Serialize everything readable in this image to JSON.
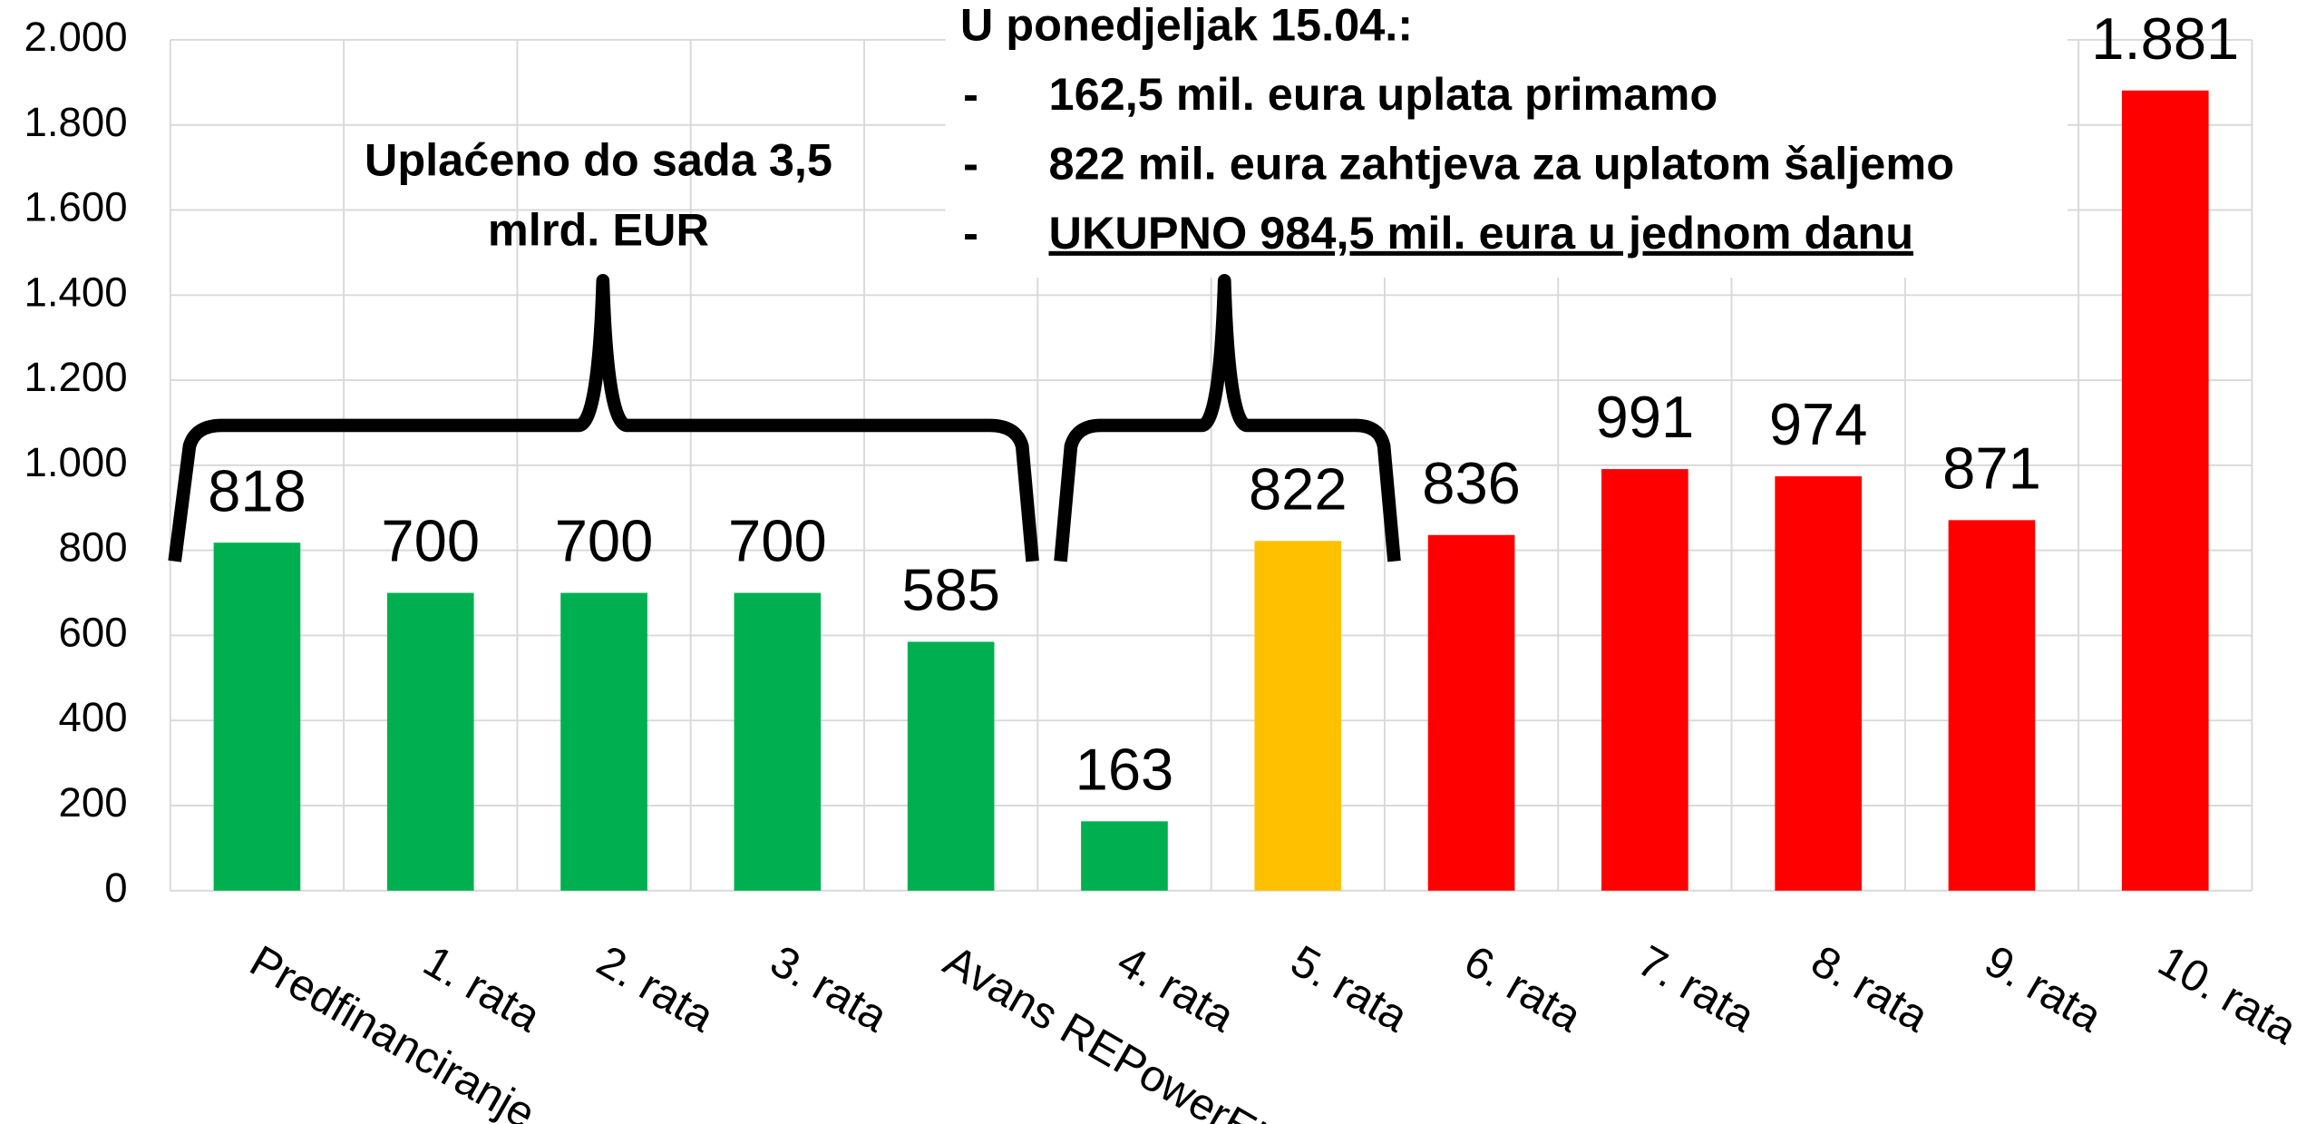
{
  "chart_data": {
    "type": "bar",
    "categories": [
      "Predfinanciranje",
      "1. rata",
      "2. rata",
      "3. rata",
      "Avans REPowerEU",
      "4. rata",
      "5. rata",
      "6. rata",
      "7. rata",
      "8. rata",
      "9. rata",
      "10. rata"
    ],
    "values": [
      818,
      700,
      700,
      700,
      585,
      163,
      822,
      836,
      991,
      974,
      871,
      1881
    ],
    "value_labels": [
      "818",
      "700",
      "700",
      "700",
      "585",
      "163",
      "822",
      "836",
      "991",
      "974",
      "871",
      "1.881"
    ],
    "colors": [
      "#00b050",
      "#00b050",
      "#00b050",
      "#00b050",
      "#00b050",
      "#00b050",
      "#ffc000",
      "#ff0000",
      "#ff0000",
      "#ff0000",
      "#ff0000",
      "#ff0000"
    ],
    "ylim": [
      0,
      2000
    ],
    "yticks": [
      0,
      200,
      400,
      600,
      800,
      {
        "value": 1000,
        "label": "1.000"
      },
      {
        "value": 1200,
        "label": "1.200"
      },
      {
        "value": 1400,
        "label": "1.400"
      },
      {
        "value": 1600,
        "label": "1.600"
      },
      {
        "value": 1800,
        "label": "1.800"
      },
      {
        "value": 2000,
        "label": "2.000"
      }
    ],
    "grid": true,
    "annotations": {
      "paid": "Uplaćeno do sada 3,5 mlrd. EUR",
      "monday_title": "U ponedjeljak 15.04.:",
      "monday_items": [
        "162,5 mil. eura uplata primamo",
        "822 mil. eura zahtjeva za uplatom šaljemo",
        "UKUPNO 984,5 mil. eura u jednom danu"
      ]
    }
  }
}
